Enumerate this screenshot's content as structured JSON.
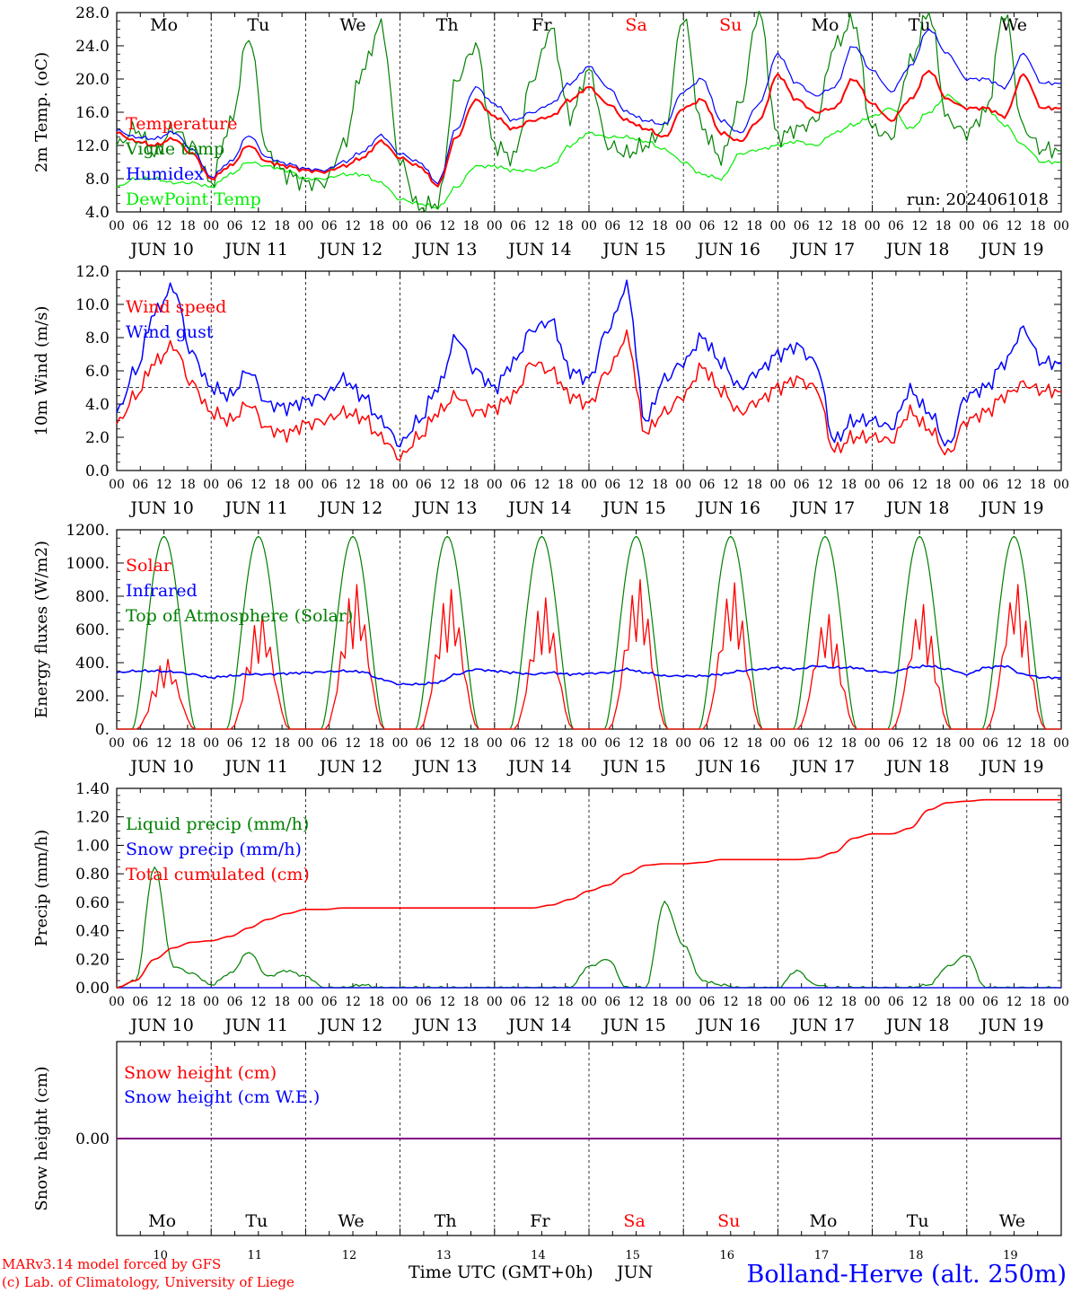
{
  "days": [
    {
      "dow": "Mo",
      "date": "JUN 10",
      "num": "10",
      "weekend": false
    },
    {
      "dow": "Tu",
      "date": "JUN 11",
      "num": "11",
      "weekend": false
    },
    {
      "dow": "We",
      "date": "JUN 12",
      "num": "12",
      "weekend": false
    },
    {
      "dow": "Th",
      "date": "JUN 13",
      "num": "13",
      "weekend": false
    },
    {
      "dow": "Fr",
      "date": "JUN 14",
      "num": "14",
      "weekend": false
    },
    {
      "dow": "Sa",
      "date": "JUN 15",
      "num": "15",
      "weekend": true
    },
    {
      "dow": "Su",
      "date": "JUN 16",
      "num": "16",
      "weekend": true
    },
    {
      "dow": "Mo",
      "date": "JUN 17",
      "num": "17",
      "weekend": false
    },
    {
      "dow": "Tu",
      "date": "JUN 18",
      "num": "18",
      "weekend": false
    },
    {
      "dow": "We",
      "date": "JUN 19",
      "num": "19",
      "weekend": false
    }
  ],
  "hour_ticks": [
    "00",
    "06",
    "12",
    "18"
  ],
  "final_tick": "00",
  "colors": {
    "red": "#ff0000",
    "green": "#008000",
    "blue": "#0000ff",
    "lightgreen": "#00ee00",
    "purple": "#800080",
    "axis": "#000000"
  },
  "footer": {
    "model": "MARv3.14 model forced by GFS",
    "lab": "(c) Lab. of Climatology, University of Liege",
    "time_label": "Time UTC (GMT+0h)",
    "month": "JUN",
    "station": "Bolland-Herve (alt. 250m)"
  },
  "chart_data": [
    {
      "id": "temp",
      "type": "line",
      "ylabel": "2m Temp. (oC)",
      "ylim": [
        4,
        28
      ],
      "yticks": [
        "4.0",
        "8.0",
        "12.0",
        "16.0",
        "20.0",
        "24.0",
        "28.0"
      ],
      "annotation": "run: 2024061018",
      "grid": "vertical dashed day separators",
      "series": [
        {
          "name": "Temperature",
          "color": "red",
          "y_hourly6": [
            13.5,
            12.5,
            12.0,
            12.8,
            11.0,
            8.0,
            9.5,
            12.0,
            10.0,
            9.5,
            9.0,
            8.8,
            9.5,
            10.5,
            12.5,
            10.5,
            9.5,
            7.2,
            13.0,
            17.5,
            15.5,
            14.0,
            15.0,
            15.5,
            17.5,
            19.0,
            17.0,
            15.0,
            14.0,
            13.0,
            16.5,
            17.5,
            13.5,
            12.5,
            15.0,
            20.5,
            17.5,
            16.0,
            16.5,
            20.0,
            17.0,
            15.0,
            17.5,
            21.0,
            17.5,
            16.5,
            16.5,
            15.5,
            20.5,
            16.5
          ]
        },
        {
          "name": "Vigne temp",
          "color": "green",
          "y_hourly6": [
            12.0,
            14.0,
            11.0,
            14.0,
            12.0,
            7.5,
            14.5,
            25.0,
            11.0,
            8.5,
            7.5,
            7.5,
            12.0,
            21.0,
            26.5,
            10.0,
            4.5,
            5.0,
            20.0,
            24.0,
            12.0,
            10.5,
            20.0,
            26.0,
            15.5,
            21.0,
            12.0,
            11.0,
            12.0,
            14.0,
            27.5,
            14.0,
            10.5,
            17.0,
            28.0,
            13.0,
            14.0,
            15.0,
            24.0,
            27.0,
            14.0,
            13.0,
            22.0,
            28.0,
            15.0,
            13.5,
            16.0,
            28.0,
            14.0,
            11.5
          ]
        },
        {
          "name": "Humidex",
          "color": "blue",
          "y_hourly6": [
            13.8,
            13.0,
            12.8,
            13.6,
            11.5,
            8.2,
            10.0,
            13.2,
            10.5,
            9.8,
            9.2,
            9.0,
            10.0,
            11.2,
            13.2,
            11.0,
            10.0,
            7.5,
            14.0,
            19.0,
            17.0,
            15.0,
            16.0,
            17.0,
            19.5,
            21.5,
            19.0,
            16.0,
            15.0,
            14.5,
            18.5,
            20.0,
            15.0,
            13.5,
            17.0,
            23.0,
            19.5,
            18.0,
            19.0,
            24.0,
            21.0,
            18.5,
            21.5,
            26.0,
            23.0,
            20.0,
            20.0,
            19.0,
            23.0,
            19.5
          ]
        },
        {
          "name": "DewPoint Temp",
          "color": "lightgreen",
          "y_hourly6": [
            7.0,
            8.0,
            8.0,
            7.5,
            7.5,
            7.0,
            8.5,
            10.0,
            9.5,
            9.0,
            8.0,
            8.0,
            8.5,
            8.5,
            7.5,
            5.5,
            5.0,
            4.5,
            7.0,
            9.5,
            9.5,
            9.0,
            9.0,
            9.5,
            12.0,
            13.5,
            13.0,
            13.0,
            12.5,
            11.5,
            10.0,
            8.5,
            8.0,
            11.0,
            11.5,
            12.0,
            12.5,
            12.0,
            13.5,
            14.5,
            15.5,
            16.5,
            14.0,
            16.0,
            18.0,
            16.5,
            16.5,
            14.5,
            12.0,
            10.0
          ]
        }
      ]
    },
    {
      "id": "wind",
      "type": "line",
      "ylabel": "10m Wind (m/s)",
      "ylim": [
        0,
        12
      ],
      "yticks": [
        "0.0",
        "2.0",
        "4.0",
        "6.0",
        "8.0",
        "10.0",
        "12.0"
      ],
      "reference_line": 5.0,
      "series": [
        {
          "name": "Wind speed",
          "color": "red",
          "y_hourly6": [
            2.8,
            4.5,
            6.5,
            7.5,
            5.2,
            3.5,
            3.0,
            4.0,
            2.5,
            2.2,
            2.8,
            3.0,
            3.5,
            3.2,
            2.0,
            0.8,
            2.0,
            3.5,
            4.5,
            3.5,
            3.8,
            4.5,
            6.5,
            6.0,
            4.5,
            4.0,
            6.0,
            8.0,
            2.3,
            3.5,
            4.5,
            6.2,
            4.8,
            3.5,
            4.2,
            5.0,
            5.5,
            5.0,
            1.2,
            2.0,
            2.0,
            1.8,
            3.5,
            2.5,
            1.0,
            3.0,
            3.5,
            4.5,
            5.2,
            4.8
          ]
        },
        {
          "name": "Wind gust",
          "color": "blue",
          "y_hourly6": [
            3.5,
            6.0,
            9.5,
            11.0,
            7.0,
            5.0,
            4.5,
            6.0,
            4.0,
            3.8,
            4.2,
            4.5,
            5.5,
            4.5,
            3.0,
            1.6,
            3.0,
            5.0,
            8.0,
            6.0,
            5.0,
            6.5,
            8.5,
            9.0,
            6.0,
            5.5,
            8.5,
            11.0,
            3.0,
            5.5,
            6.5,
            8.0,
            6.5,
            5.0,
            6.0,
            7.0,
            7.5,
            6.5,
            1.8,
            3.0,
            3.0,
            2.6,
            4.8,
            3.5,
            1.5,
            4.5,
            5.0,
            6.5,
            8.5,
            6.5
          ]
        }
      ]
    },
    {
      "id": "energy",
      "type": "line",
      "ylabel": "Energy fluxes (W/m2)",
      "ylim": [
        0,
        1200
      ],
      "yticks": [
        "0.",
        "200.",
        "400.",
        "600.",
        "800.",
        "1000.",
        "1200."
      ],
      "series": [
        {
          "name": "Solar",
          "color": "red",
          "daily_peak": [
            420,
            690,
            870,
            840,
            790,
            900,
            880,
            690,
            750,
            870
          ]
        },
        {
          "name": "Infrared",
          "color": "blue",
          "y_hourly6": [
            340,
            350,
            350,
            345,
            330,
            310,
            320,
            330,
            330,
            335,
            340,
            345,
            350,
            345,
            300,
            270,
            270,
            280,
            330,
            360,
            350,
            340,
            330,
            340,
            330,
            335,
            340,
            360,
            340,
            320,
            320,
            320,
            330,
            350,
            360,
            370,
            360,
            380,
            370,
            370,
            350,
            340,
            370,
            380,
            360,
            330,
            370,
            380,
            330,
            310
          ]
        },
        {
          "name": "Top of Atmosphere (Solar)",
          "color": "green",
          "daily_peak": 1160
        }
      ]
    },
    {
      "id": "precip",
      "type": "line",
      "ylabel": "Precip (mm/h)",
      "ylim": [
        0,
        1.4
      ],
      "yticks": [
        "0.00",
        "0.20",
        "0.40",
        "0.60",
        "0.80",
        "1.00",
        "1.20",
        "1.40"
      ],
      "series": [
        {
          "name": "Liquid precip (mm/h)",
          "color": "green",
          "y_hourly6": [
            0.0,
            0.05,
            0.85,
            0.15,
            0.1,
            0.02,
            0.1,
            0.25,
            0.08,
            0.12,
            0.08,
            0.0,
            0.0,
            0.02,
            0.0,
            0.0,
            0.0,
            0.0,
            0.0,
            0.0,
            0.0,
            0.0,
            0.0,
            0.0,
            0.0,
            0.15,
            0.2,
            0.0,
            0.0,
            0.6,
            0.3,
            0.05,
            0.02,
            0.0,
            0.0,
            0.0,
            0.12,
            0.02,
            0.0,
            0.0,
            0.0,
            0.0,
            0.0,
            0.02,
            0.15,
            0.23,
            0.0,
            0.0,
            0.0,
            0.0
          ]
        },
        {
          "name": "Snow precip (mm/h)",
          "color": "blue",
          "y_hourly6": [
            0,
            0,
            0,
            0,
            0,
            0,
            0,
            0,
            0,
            0,
            0,
            0,
            0,
            0,
            0,
            0,
            0,
            0,
            0,
            0,
            0,
            0,
            0,
            0,
            0,
            0,
            0,
            0,
            0,
            0,
            0,
            0,
            0,
            0,
            0,
            0,
            0,
            0,
            0,
            0,
            0,
            0,
            0,
            0,
            0,
            0,
            0,
            0,
            0,
            0
          ]
        },
        {
          "name": "Total cumulated (cm)",
          "color": "red",
          "y_hourly6": [
            0.0,
            0.05,
            0.2,
            0.28,
            0.32,
            0.33,
            0.36,
            0.42,
            0.48,
            0.52,
            0.55,
            0.55,
            0.56,
            0.56,
            0.56,
            0.56,
            0.56,
            0.56,
            0.56,
            0.56,
            0.56,
            0.56,
            0.56,
            0.58,
            0.62,
            0.68,
            0.72,
            0.8,
            0.86,
            0.87,
            0.87,
            0.88,
            0.9,
            0.9,
            0.9,
            0.9,
            0.9,
            0.91,
            0.95,
            1.05,
            1.08,
            1.08,
            1.12,
            1.25,
            1.3,
            1.31,
            1.32,
            1.32,
            1.32,
            1.32
          ]
        }
      ]
    },
    {
      "id": "snow",
      "type": "line",
      "ylabel": "Snow height (cm)",
      "yticks": [
        "0.00"
      ],
      "series": [
        {
          "name": "Snow height (cm)",
          "color": "red",
          "value": 0.0
        },
        {
          "name": "Snow height (cm W.E.)",
          "color": "blue",
          "value": 0.0
        }
      ]
    }
  ]
}
